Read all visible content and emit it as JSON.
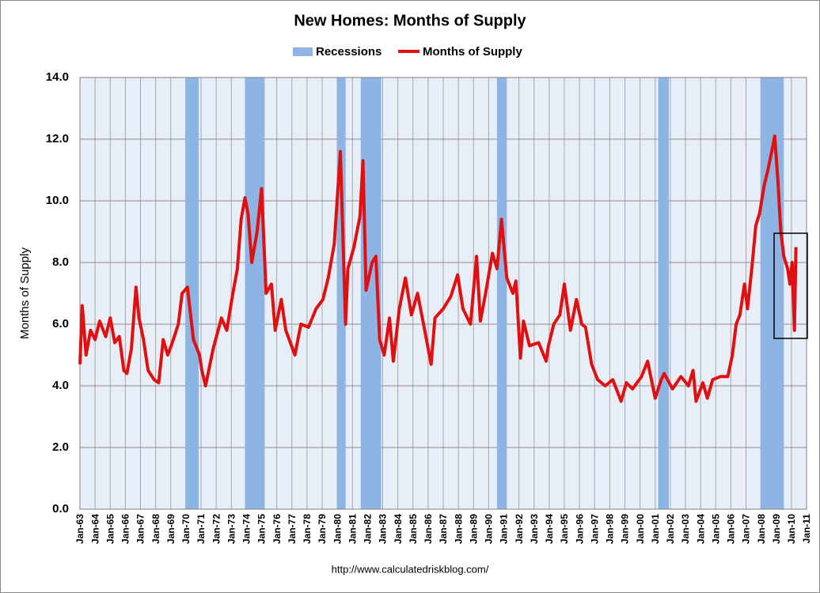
{
  "chart_data": {
    "type": "line",
    "title": "New Homes: Months of Supply",
    "y_label": "Months of Supply",
    "source": "http://www.calculatedriskblog.com/",
    "recessions": {
      "name": "Recessions",
      "color": "#8db4e2",
      "periods": [
        [
          1969.96,
          1970.85
        ],
        [
          1973.9,
          1975.2
        ],
        [
          1980.0,
          1980.55
        ],
        [
          1981.55,
          1982.9
        ],
        [
          1990.55,
          1991.2
        ],
        [
          2001.2,
          2001.9
        ],
        [
          2007.95,
          2009.5
        ]
      ]
    },
    "x": [
      1963.0,
      1963.15,
      1963.4,
      1963.7,
      1964.0,
      1964.3,
      1964.7,
      1965.0,
      1965.3,
      1965.6,
      1965.9,
      1966.1,
      1966.4,
      1966.7,
      1966.9,
      1967.2,
      1967.5,
      1967.9,
      1968.2,
      1968.5,
      1968.8,
      1969.1,
      1969.5,
      1969.75,
      1970.1,
      1970.5,
      1970.9,
      1971.05,
      1971.3,
      1971.8,
      1972.35,
      1972.7,
      1973.1,
      1973.4,
      1973.65,
      1973.9,
      1974.1,
      1974.35,
      1974.7,
      1975.0,
      1975.3,
      1975.65,
      1975.9,
      1976.3,
      1976.6,
      1977.2,
      1977.6,
      1978.1,
      1978.6,
      1979.05,
      1979.4,
      1979.8,
      1980.2,
      1980.55,
      1980.7,
      1981.1,
      1981.5,
      1981.7,
      1981.9,
      1982.3,
      1982.55,
      1982.8,
      1983.1,
      1983.45,
      1983.7,
      1984.1,
      1984.5,
      1984.9,
      1985.3,
      1985.7,
      1986.2,
      1986.45,
      1987.0,
      1987.5,
      1987.95,
      1988.3,
      1988.8,
      1989.2,
      1989.45,
      1989.8,
      1990.25,
      1990.55,
      1990.85,
      1991.2,
      1991.6,
      1991.8,
      1992.1,
      1992.3,
      1992.7,
      1993.3,
      1993.8,
      1993.95,
      1994.3,
      1994.7,
      1995.0,
      1995.4,
      1995.8,
      1996.15,
      1996.4,
      1996.8,
      1997.2,
      1997.7,
      1998.2,
      1998.75,
      1999.1,
      1999.5,
      2000.1,
      2000.5,
      2000.75,
      2001.0,
      2001.4,
      2001.6,
      2002.15,
      2002.7,
      2003.2,
      2003.5,
      2003.7,
      2004.15,
      2004.45,
      2004.8,
      2005.3,
      2005.8,
      2006.1,
      2006.35,
      2006.6,
      2006.9,
      2007.1,
      2007.4,
      2007.65,
      2007.9,
      2008.2,
      2008.45,
      2008.7,
      2008.9,
      2009.1,
      2009.3,
      2009.5,
      2009.75,
      2009.9,
      2010.05,
      2010.2,
      2010.3
    ],
    "series": [
      {
        "name": "Months of Supply",
        "color": "#e01010",
        "values": [
          4.7,
          6.6,
          5.0,
          5.8,
          5.5,
          6.1,
          5.6,
          6.2,
          5.4,
          5.6,
          4.5,
          4.4,
          5.2,
          7.2,
          6.2,
          5.5,
          4.5,
          4.2,
          4.1,
          5.5,
          5.0,
          5.4,
          6.0,
          7.0,
          7.2,
          5.5,
          5.0,
          4.5,
          4.0,
          5.2,
          6.2,
          5.8,
          7.0,
          7.8,
          9.4,
          10.1,
          9.6,
          8.0,
          9.0,
          10.4,
          7.0,
          7.3,
          5.8,
          6.8,
          5.8,
          5.0,
          6.0,
          5.9,
          6.5,
          6.8,
          7.5,
          8.6,
          11.6,
          6.0,
          7.8,
          8.5,
          9.5,
          11.3,
          7.1,
          8.0,
          8.2,
          5.5,
          5.0,
          6.2,
          4.8,
          6.5,
          7.5,
          6.3,
          7.0,
          6.0,
          4.7,
          6.2,
          6.5,
          6.9,
          7.6,
          6.5,
          6.0,
          8.2,
          6.1,
          7.0,
          8.3,
          7.8,
          9.4,
          7.5,
          7.0,
          7.4,
          4.9,
          6.1,
          5.3,
          5.4,
          4.8,
          5.3,
          6.0,
          6.3,
          7.3,
          5.8,
          6.8,
          6.0,
          5.9,
          4.7,
          4.2,
          4.0,
          4.2,
          3.5,
          4.1,
          3.9,
          4.3,
          4.8,
          4.2,
          3.6,
          4.2,
          4.4,
          3.9,
          4.3,
          4.0,
          4.5,
          3.5,
          4.1,
          3.6,
          4.2,
          4.3,
          4.3,
          5.0,
          6.0,
          6.3,
          7.3,
          6.5,
          7.9,
          9.2,
          9.6,
          10.5,
          11.0,
          11.6,
          12.1,
          10.7,
          9.0,
          8.2,
          7.8,
          7.3,
          8.0,
          5.8,
          8.5
        ]
      }
    ],
    "xlim": [
      1963,
      2011
    ],
    "xticks": [
      {
        "value": 1963,
        "label": "Jan-63"
      },
      {
        "value": 1964,
        "label": "Jan-64"
      },
      {
        "value": 1965,
        "label": "Jan-65"
      },
      {
        "value": 1966,
        "label": "Jan-66"
      },
      {
        "value": 1967,
        "label": "Jan-67"
      },
      {
        "value": 1968,
        "label": "Jan-68"
      },
      {
        "value": 1969,
        "label": "Jan-69"
      },
      {
        "value": 1970,
        "label": "Jan-70"
      },
      {
        "value": 1971,
        "label": "Jan-71"
      },
      {
        "value": 1972,
        "label": "Jan-72"
      },
      {
        "value": 1973,
        "label": "Jan-73"
      },
      {
        "value": 1974,
        "label": "Jan-74"
      },
      {
        "value": 1975,
        "label": "Jan-75"
      },
      {
        "value": 1976,
        "label": "Jan-76"
      },
      {
        "value": 1977,
        "label": "Jan-77"
      },
      {
        "value": 1978,
        "label": "Jan-78"
      },
      {
        "value": 1979,
        "label": "Jan-79"
      },
      {
        "value": 1980,
        "label": "Jan-80"
      },
      {
        "value": 1981,
        "label": "Jan-81"
      },
      {
        "value": 1982,
        "label": "Jan-82"
      },
      {
        "value": 1983,
        "label": "Jan-83"
      },
      {
        "value": 1984,
        "label": "Jan-84"
      },
      {
        "value": 1985,
        "label": "Jan-85"
      },
      {
        "value": 1986,
        "label": "Jan-86"
      },
      {
        "value": 1987,
        "label": "Jan-87"
      },
      {
        "value": 1988,
        "label": "Jan-88"
      },
      {
        "value": 1989,
        "label": "Jan-89"
      },
      {
        "value": 1990,
        "label": "Jan-90"
      },
      {
        "value": 1991,
        "label": "Jan-91"
      },
      {
        "value": 1992,
        "label": "Jan-92"
      },
      {
        "value": 1993,
        "label": "Jan-93"
      },
      {
        "value": 1994,
        "label": "Jan-94"
      },
      {
        "value": 1995,
        "label": "Jan-95"
      },
      {
        "value": 1996,
        "label": "Jan-96"
      },
      {
        "value": 1997,
        "label": "Jan-97"
      },
      {
        "value": 1998,
        "label": "Jan-98"
      },
      {
        "value": 1999,
        "label": "Jan-99"
      },
      {
        "value": 2000,
        "label": "Jan-00"
      },
      {
        "value": 2001,
        "label": "Jan-01"
      },
      {
        "value": 2002,
        "label": "Jan-02"
      },
      {
        "value": 2003,
        "label": "Jan-03"
      },
      {
        "value": 2004,
        "label": "Jan-04"
      },
      {
        "value": 2005,
        "label": "Jan-05"
      },
      {
        "value": 2006,
        "label": "Jan-06"
      },
      {
        "value": 2007,
        "label": "Jan-07"
      },
      {
        "value": 2008,
        "label": "Jan-08"
      },
      {
        "value": 2009,
        "label": "Jan-09"
      },
      {
        "value": 2010,
        "label": "Jan-10"
      },
      {
        "value": 2011,
        "label": "Jan-11"
      }
    ],
    "ylim": [
      0,
      14
    ],
    "yticks": [
      {
        "value": 0,
        "label": "0.0"
      },
      {
        "value": 2,
        "label": "2.0"
      },
      {
        "value": 4,
        "label": "4.0"
      },
      {
        "value": 6,
        "label": "6.0"
      },
      {
        "value": 8,
        "label": "8.0"
      },
      {
        "value": 10,
        "label": "10.0"
      },
      {
        "value": 12,
        "label": "12.0"
      },
      {
        "value": 14,
        "label": "14.0"
      }
    ],
    "grid": true
  }
}
